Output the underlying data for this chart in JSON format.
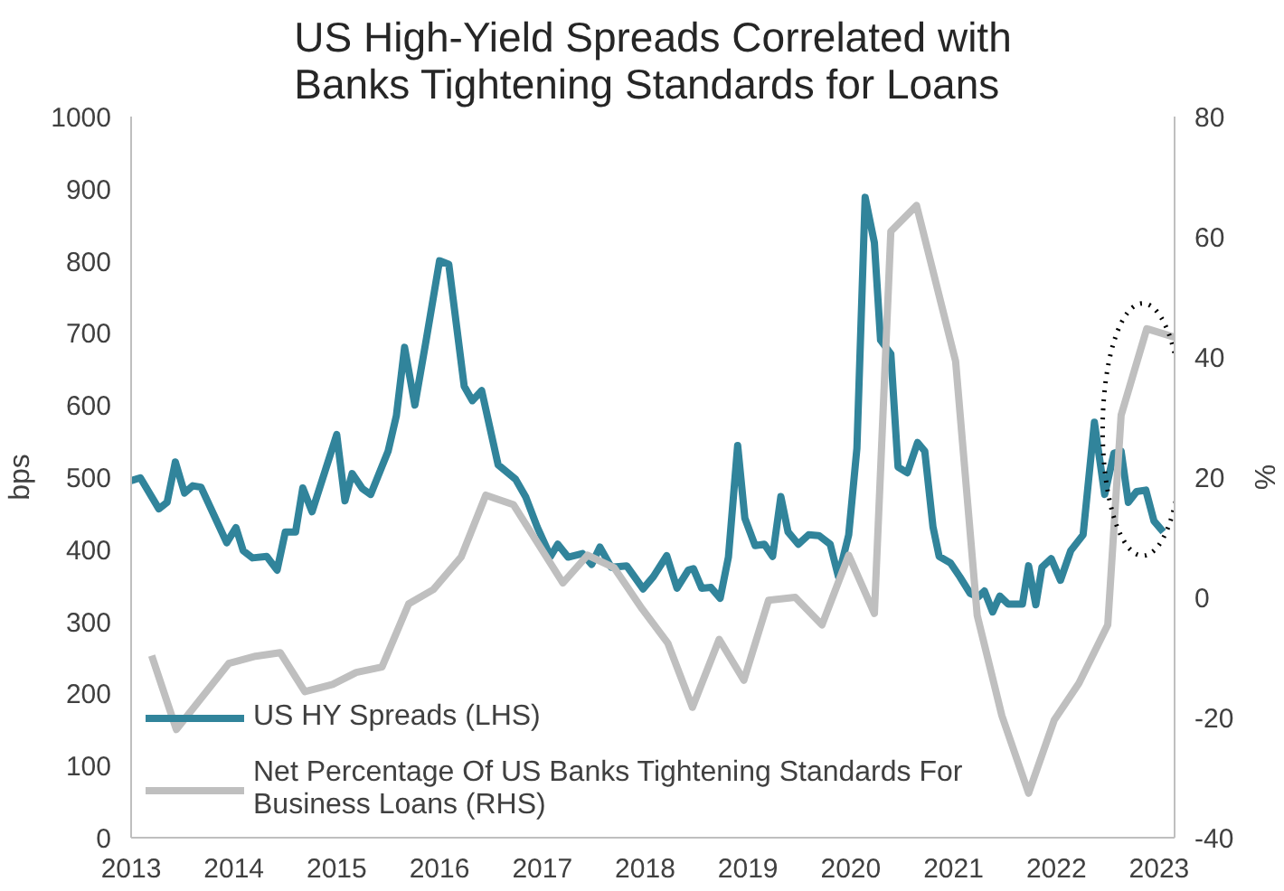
{
  "chart_data": {
    "type": "line",
    "title": "US High-Yield Spreads Correlated with Banks Tightening Standards for Loans",
    "ylabel": "bps",
    "y2label": "%",
    "xlim": [
      2013,
      2023.15
    ],
    "xticks": [
      2013,
      2014,
      2015,
      2016,
      2017,
      2018,
      2019,
      2020,
      2021,
      2022,
      2023
    ],
    "ylim": [
      0,
      1000
    ],
    "yticks": [
      0,
      100,
      200,
      300,
      400,
      500,
      600,
      700,
      800,
      900,
      1000
    ],
    "y2lim": [
      -40,
      80
    ],
    "y2ticks": [
      -40,
      -20,
      0,
      20,
      40,
      60,
      80
    ],
    "grid": false,
    "legend": "bottom left",
    "line_style": "solid",
    "series": [
      {
        "name": "US HY Spreads (LHS)",
        "color": "#31849b",
        "x": [
          2013.0,
          2013.09,
          2013.27,
          2013.35,
          2013.43,
          2013.52,
          2013.6,
          2013.68,
          2013.82,
          2013.93,
          2014.02,
          2014.09,
          2014.18,
          2014.32,
          2014.42,
          2014.5,
          2014.6,
          2014.67,
          2014.76,
          2015.0,
          2015.08,
          2015.15,
          2015.25,
          2015.33,
          2015.5,
          2015.58,
          2015.66,
          2015.76,
          2015.87,
          2016.0,
          2016.09,
          2016.24,
          2016.32,
          2016.41,
          2016.57,
          2016.74,
          2016.84,
          2016.95,
          2017.08,
          2017.15,
          2017.25,
          2017.39,
          2017.48,
          2017.56,
          2017.67,
          2017.82,
          2017.98,
          2018.08,
          2018.21,
          2018.31,
          2018.42,
          2018.47,
          2018.55,
          2018.64,
          2018.73,
          2018.81,
          2018.9,
          2018.97,
          2019.07,
          2019.16,
          2019.24,
          2019.32,
          2019.39,
          2019.49,
          2019.59,
          2019.69,
          2019.8,
          2019.88,
          2019.98,
          2020.06,
          2020.14,
          2020.23,
          2020.29,
          2020.39,
          2020.46,
          2020.55,
          2020.65,
          2020.72,
          2020.8,
          2020.86,
          2020.97,
          2021.06,
          2021.16,
          2021.24,
          2021.3,
          2021.38,
          2021.45,
          2021.53,
          2021.67,
          2021.73,
          2021.8,
          2021.86,
          2021.95,
          2022.04,
          2022.14,
          2022.26,
          2022.37,
          2022.47,
          2022.56,
          2022.63,
          2022.7,
          2022.78,
          2022.87,
          2022.95,
          2023.04
        ],
        "values": [
          495,
          499,
          456,
          465,
          521,
          478,
          488,
          486,
          443,
          409,
          430,
          398,
          388,
          390,
          371,
          424,
          424,
          485,
          452,
          559,
          467,
          505,
          484,
          476,
          536,
          585,
          680,
          600,
          690,
          800,
          795,
          626,
          606,
          620,
          517,
          497,
          472,
          431,
          390,
          407,
          389,
          394,
          379,
          403,
          375,
          377,
          345,
          362,
          391,
          346,
          371,
          373,
          346,
          347,
          332,
          389,
          544,
          443,
          405,
          407,
          390,
          473,
          424,
          407,
          420,
          419,
          407,
          362,
          420,
          540,
          888,
          825,
          690,
          671,
          514,
          506,
          548,
          536,
          431,
          390,
          381,
          362,
          339,
          334,
          342,
          313,
          335,
          324,
          324,
          377,
          323,
          375,
          387,
          357,
          398,
          420,
          576,
          476,
          533,
          536,
          465,
          480,
          482,
          439,
          424
        ]
      },
      {
        "name": "Net Percentage Of US Banks Tightening Standards For Business Loans (RHS)",
        "color": "#bfbfbf",
        "axis": "y2",
        "x": [
          2013.2,
          2013.44,
          2013.95,
          2014.21,
          2014.45,
          2014.69,
          2014.96,
          2015.19,
          2015.44,
          2015.7,
          2015.94,
          2016.21,
          2016.45,
          2016.72,
          2017.2,
          2017.44,
          2017.7,
          2017.97,
          2018.22,
          2018.46,
          2018.72,
          2018.96,
          2019.2,
          2019.46,
          2019.72,
          2019.98,
          2020.23,
          2020.39,
          2020.64,
          2021.02,
          2021.23,
          2021.47,
          2021.73,
          2021.98,
          2022.22,
          2022.5,
          2022.63,
          2022.88,
          2023.15
        ],
        "values": [
          -9.7,
          -22,
          -11,
          -9.8,
          -9.2,
          -15.7,
          -14.5,
          -12.5,
          -11.6,
          -1.1,
          1.3,
          6.7,
          17,
          15.4,
          2.4,
          7,
          4.9,
          -1.9,
          -7.6,
          -18.3,
          -7,
          -13.8,
          -0.5,
          0,
          -4.6,
          7,
          -2.7,
          60.9,
          65.2,
          39.3,
          -3,
          -19.7,
          -32.6,
          -20.4,
          -14.3,
          -4.6,
          30.3,
          44.7,
          43.3
        ]
      }
    ]
  }
}
